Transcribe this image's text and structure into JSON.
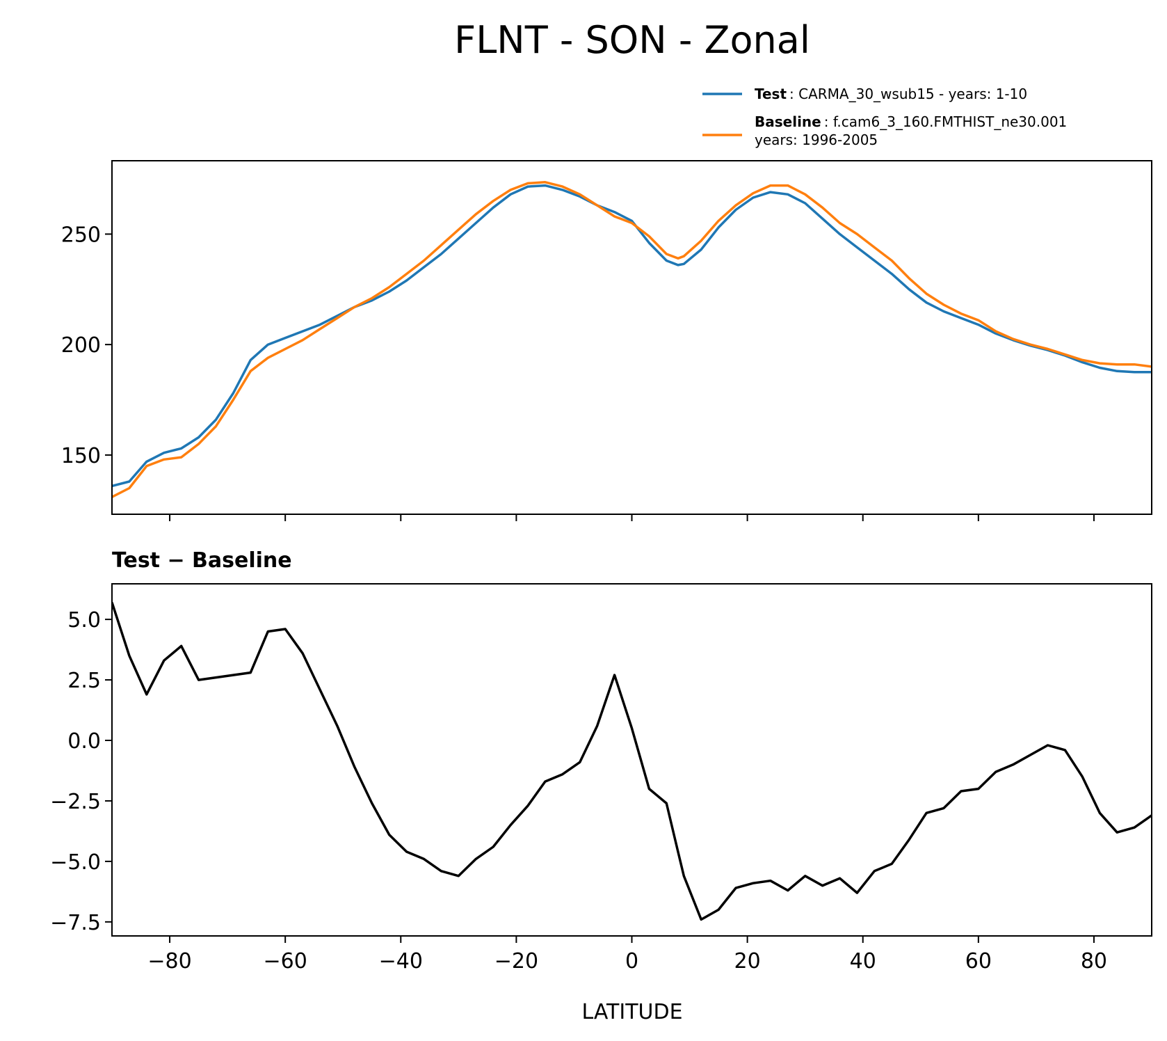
{
  "chart_data": [
    {
      "type": "line",
      "title": "FLNT - SON - Zonal",
      "x": [
        -90,
        -87,
        -84,
        -81,
        -78,
        -75,
        -72,
        -69,
        -66,
        -63,
        -60,
        -57,
        -54,
        -51,
        -48,
        -45,
        -42,
        -39,
        -36,
        -33,
        -30,
        -27,
        -24,
        -21,
        -18,
        -15,
        -12,
        -9,
        -6,
        -3,
        0,
        3,
        6,
        8,
        9,
        12,
        15,
        18,
        21,
        24,
        27,
        30,
        33,
        36,
        39,
        42,
        45,
        48,
        51,
        54,
        57,
        60,
        63,
        66,
        69,
        72,
        75,
        78,
        81,
        84,
        87,
        90
      ],
      "series": [
        {
          "name": "Test",
          "description": ": CARMA_30_wsub15 - years: 1-10",
          "color": "#1f77b4",
          "values": [
            136,
            138,
            147,
            151,
            153,
            158,
            166,
            178,
            193,
            200,
            203,
            206,
            209,
            213,
            217,
            220,
            224,
            229,
            235,
            241,
            248,
            255,
            262,
            268,
            271.5,
            272,
            270,
            267,
            263,
            260,
            256,
            246,
            238,
            236,
            236.5,
            243,
            253,
            261,
            266.5,
            269,
            268,
            264,
            257,
            250,
            244,
            238,
            232,
            225,
            219,
            215,
            212,
            209,
            205,
            202,
            199.5,
            197.5,
            195,
            192,
            189.5,
            188,
            187.5,
            187.5
          ]
        },
        {
          "name": "Baseline",
          "description": ": f.cam6_3_160.FMTHIST_ne30.001",
          "description_line2": "years: 1996-2005",
          "color": "#ff7f0e",
          "values": [
            131,
            135,
            145,
            148,
            149,
            155,
            163,
            175,
            188,
            194,
            198,
            202,
            207,
            212,
            217,
            221,
            226,
            232,
            238,
            245,
            252,
            259,
            265,
            270,
            273,
            273.5,
            271.5,
            268,
            263,
            258,
            255,
            249,
            241,
            239,
            240,
            247,
            256,
            263,
            268.5,
            272,
            272,
            268,
            262,
            255,
            250,
            244,
            238,
            230,
            223,
            218,
            214,
            211,
            206,
            202.5,
            200,
            198,
            195.5,
            193,
            191.5,
            191,
            191,
            190
          ]
        }
      ],
      "xlim": [
        -90,
        90
      ],
      "xticks": [
        -80,
        -60,
        -40,
        -20,
        0,
        20,
        40,
        60,
        80
      ],
      "ylim": [
        123.2,
        283.2
      ],
      "yticks": [
        150,
        200,
        250
      ]
    },
    {
      "type": "line",
      "title": "Test − Baseline",
      "xlabel": "LATITUDE",
      "x": [
        -90,
        -87,
        -84,
        -81,
        -78,
        -75,
        -72,
        -69,
        -66,
        -63,
        -60,
        -57,
        -54,
        -51,
        -48,
        -45,
        -42,
        -39,
        -36,
        -33,
        -30,
        -27,
        -24,
        -21,
        -18,
        -15,
        -12,
        -9,
        -6,
        -3,
        0,
        3,
        6,
        8,
        9,
        12,
        15,
        18,
        21,
        24,
        27,
        30,
        33,
        36,
        39,
        42,
        45,
        48,
        51,
        54,
        57,
        60,
        63,
        66,
        69,
        72,
        75,
        78,
        81,
        84,
        87,
        90
      ],
      "series": [
        {
          "color": "#000000",
          "values": [
            5.7,
            3.5,
            1.9,
            3.3,
            3.9,
            2.5,
            2.6,
            2.7,
            2.8,
            4.5,
            4.6,
            3.6,
            2.1,
            0.6,
            -1.1,
            -2.6,
            -3.9,
            -4.6,
            -4.9,
            -5.4,
            -5.6,
            -4.9,
            -4.4,
            -3.5,
            -2.7,
            -1.7,
            -1.4,
            -0.9,
            0.6,
            2.7,
            0.5,
            -2.0,
            -2.6,
            -4.6,
            -5.6,
            -7.4,
            -7.0,
            -6.1,
            -5.9,
            -5.8,
            -6.2,
            -5.6,
            -6.0,
            -5.7,
            -6.3,
            -5.4,
            -5.1,
            -4.1,
            -3.0,
            -2.8,
            -2.1,
            -2.0,
            -1.3,
            -1.0,
            -0.6,
            -0.2,
            -0.4,
            -1.5,
            -3.0,
            -3.8,
            -3.6,
            -3.1
          ]
        }
      ],
      "xlim": [
        -90,
        90
      ],
      "xticks": [
        {
          "value": -80,
          "label": "−80"
        },
        {
          "value": -60,
          "label": "−60"
        },
        {
          "value": -40,
          "label": "−40"
        },
        {
          "value": -20,
          "label": "−20"
        },
        0,
        20,
        40,
        60,
        80
      ],
      "ylim": [
        -8.08,
        6.47
      ],
      "yticks": [
        {
          "value": -7.5,
          "label": "−7.5"
        },
        {
          "value": -5,
          "label": "−5.0"
        },
        {
          "value": -2.5,
          "label": "−2.5"
        },
        {
          "value": 0,
          "label": "0.0"
        },
        {
          "value": 2.5,
          "label": "2.5"
        },
        {
          "value": 5,
          "label": "5.0"
        }
      ]
    }
  ]
}
